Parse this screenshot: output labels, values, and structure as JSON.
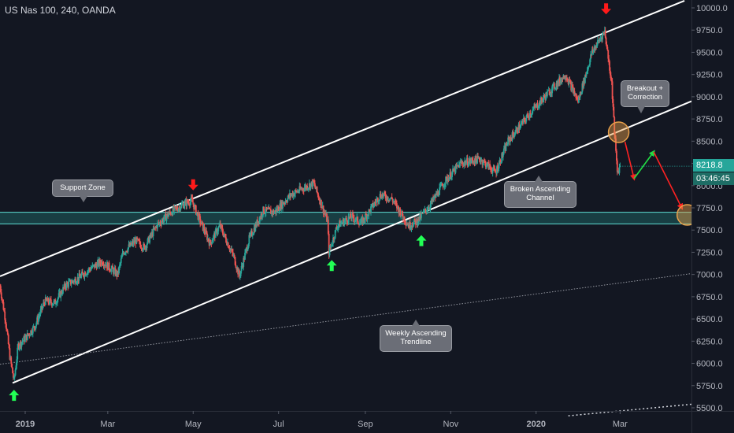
{
  "header": {
    "title": "US Nas 100, 240, OANDA"
  },
  "price_badge": {
    "value": "8218.8",
    "timer": "03:46:45"
  },
  "annotations": {
    "support_zone": "Support Zone",
    "broken_channel": "Broken Ascending\nChannel",
    "weekly_trendline": "Weekly Ascending\nTrendline",
    "breakout": "Breakout +\nCorrection"
  },
  "colors": {
    "background": "#131722",
    "candle_up": "#26a69a",
    "candle_down": "#ef5350",
    "channel_line": "#ffffff",
    "support_zone": "#26a69a",
    "arrow_down": "#ff1a1a",
    "arrow_up": "#22ff55",
    "projection_up": "#22dd44",
    "projection_down": "#ff2222",
    "circle": "#e8a04a",
    "axis_text": "#b2b5be"
  },
  "chart_data": {
    "type": "candlestick",
    "symbol": "US Nas 100",
    "interval": "240",
    "source": "OANDA",
    "last_price": 8218.8,
    "ylim": [
      5450,
      10050
    ],
    "xlim": [
      "2018-12-14",
      "2020-04-21"
    ],
    "y_ticks": [
      "10000.0",
      "9750.0",
      "9500.0",
      "9250.0",
      "9000.0",
      "8750.0",
      "8500.0",
      "8250.0",
      "8000.0",
      "7750.0",
      "7500.0",
      "7250.0",
      "7000.0",
      "6750.0",
      "6500.0",
      "6250.0",
      "6000.0",
      "5750.0",
      "5500.0"
    ],
    "x_ticks": [
      {
        "label": "2019",
        "date": "2019-01-01"
      },
      {
        "label": "Mar",
        "date": "2019-03-01"
      },
      {
        "label": "May",
        "date": "2019-05-01"
      },
      {
        "label": "Jul",
        "date": "2019-07-01"
      },
      {
        "label": "Sep",
        "date": "2019-09-01"
      },
      {
        "label": "Nov",
        "date": "2019-11-01"
      },
      {
        "label": "2020",
        "date": "2020-01-01"
      },
      {
        "label": "Mar",
        "date": "2020-03-01"
      }
    ],
    "price_path": [
      [
        "2018-12-14",
        6870
      ],
      [
        "2018-12-18",
        6480
      ],
      [
        "2018-12-21",
        6080
      ],
      [
        "2018-12-24",
        5800
      ],
      [
        "2018-12-27",
        6200
      ],
      [
        "2019-01-02",
        6300
      ],
      [
        "2019-01-08",
        6420
      ],
      [
        "2019-01-15",
        6700
      ],
      [
        "2019-01-22",
        6680
      ],
      [
        "2019-01-30",
        6880
      ],
      [
        "2019-02-08",
        6960
      ],
      [
        "2019-02-15",
        7050
      ],
      [
        "2019-02-25",
        7150
      ],
      [
        "2019-03-08",
        7000
      ],
      [
        "2019-03-12",
        7250
      ],
      [
        "2019-03-21",
        7380
      ],
      [
        "2019-03-27",
        7300
      ],
      [
        "2019-04-05",
        7550
      ],
      [
        "2019-04-15",
        7700
      ],
      [
        "2019-04-25",
        7800
      ],
      [
        "2019-04-30",
        7830
      ],
      [
        "2019-05-06",
        7600
      ],
      [
        "2019-05-13",
        7350
      ],
      [
        "2019-05-20",
        7550
      ],
      [
        "2019-05-30",
        7200
      ],
      [
        "2019-06-03",
        6980
      ],
      [
        "2019-06-10",
        7400
      ],
      [
        "2019-06-20",
        7720
      ],
      [
        "2019-06-28",
        7700
      ],
      [
        "2019-07-10",
        7900
      ],
      [
        "2019-07-26",
        8030
      ],
      [
        "2019-08-05",
        7600
      ],
      [
        "2019-08-06",
        7250
      ],
      [
        "2019-08-12",
        7550
      ],
      [
        "2019-08-22",
        7650
      ],
      [
        "2019-08-29",
        7580
      ],
      [
        "2019-09-12",
        7900
      ],
      [
        "2019-09-20",
        7850
      ],
      [
        "2019-10-02",
        7550
      ],
      [
        "2019-10-08",
        7600
      ],
      [
        "2019-10-18",
        7800
      ],
      [
        "2019-10-28",
        8050
      ],
      [
        "2019-11-08",
        8250
      ],
      [
        "2019-11-22",
        8300
      ],
      [
        "2019-12-03",
        8150
      ],
      [
        "2019-12-12",
        8500
      ],
      [
        "2019-12-27",
        8800
      ],
      [
        "2020-01-10",
        9050
      ],
      [
        "2020-01-22",
        9250
      ],
      [
        "2020-01-31",
        8950
      ],
      [
        "2020-02-10",
        9500
      ],
      [
        "2020-02-19",
        9740
      ],
      [
        "2020-02-24",
        9150
      ],
      [
        "2020-02-26",
        8600
      ],
      [
        "2020-02-28",
        8150
      ],
      [
        "2020-03-01",
        8218.8
      ]
    ],
    "support_zone": {
      "low": 7570,
      "high": 7700
    },
    "upper_channel": {
      "from": [
        "2018-12-14",
        6980
      ],
      "to": [
        "2020-04-16",
        10080
      ]
    },
    "lower_channel": {
      "from": [
        "2018-12-23",
        5780
      ],
      "to": [
        "2020-04-21",
        8950
      ]
    },
    "weekly_trendline": {
      "from": [
        "2018-12-14",
        5990
      ],
      "to": [
        "2020-04-21",
        7010
      ]
    },
    "lower_dotted": {
      "from": [
        "2020-01-24",
        5410
      ],
      "to": [
        "2020-04-21",
        5540
      ]
    },
    "markers": {
      "down_arrows": [
        [
          "2019-05-01",
          8000
        ],
        [
          "2020-02-20",
          9980
        ]
      ],
      "up_arrows": [
        [
          "2018-12-24",
          5650
        ],
        [
          "2019-08-08",
          7110
        ],
        [
          "2019-10-11",
          7390
        ]
      ],
      "circles": [
        [
          "2020-02-29",
          8600
        ],
        [
          "2020-04-18",
          7670
        ]
      ],
      "projection": [
        [
          "2020-02-29",
          8600
        ],
        [
          "2020-03-11",
          8080
        ],
        [
          "2020-03-25",
          8380
        ],
        [
          "2020-04-18",
          7670
        ]
      ]
    }
  }
}
